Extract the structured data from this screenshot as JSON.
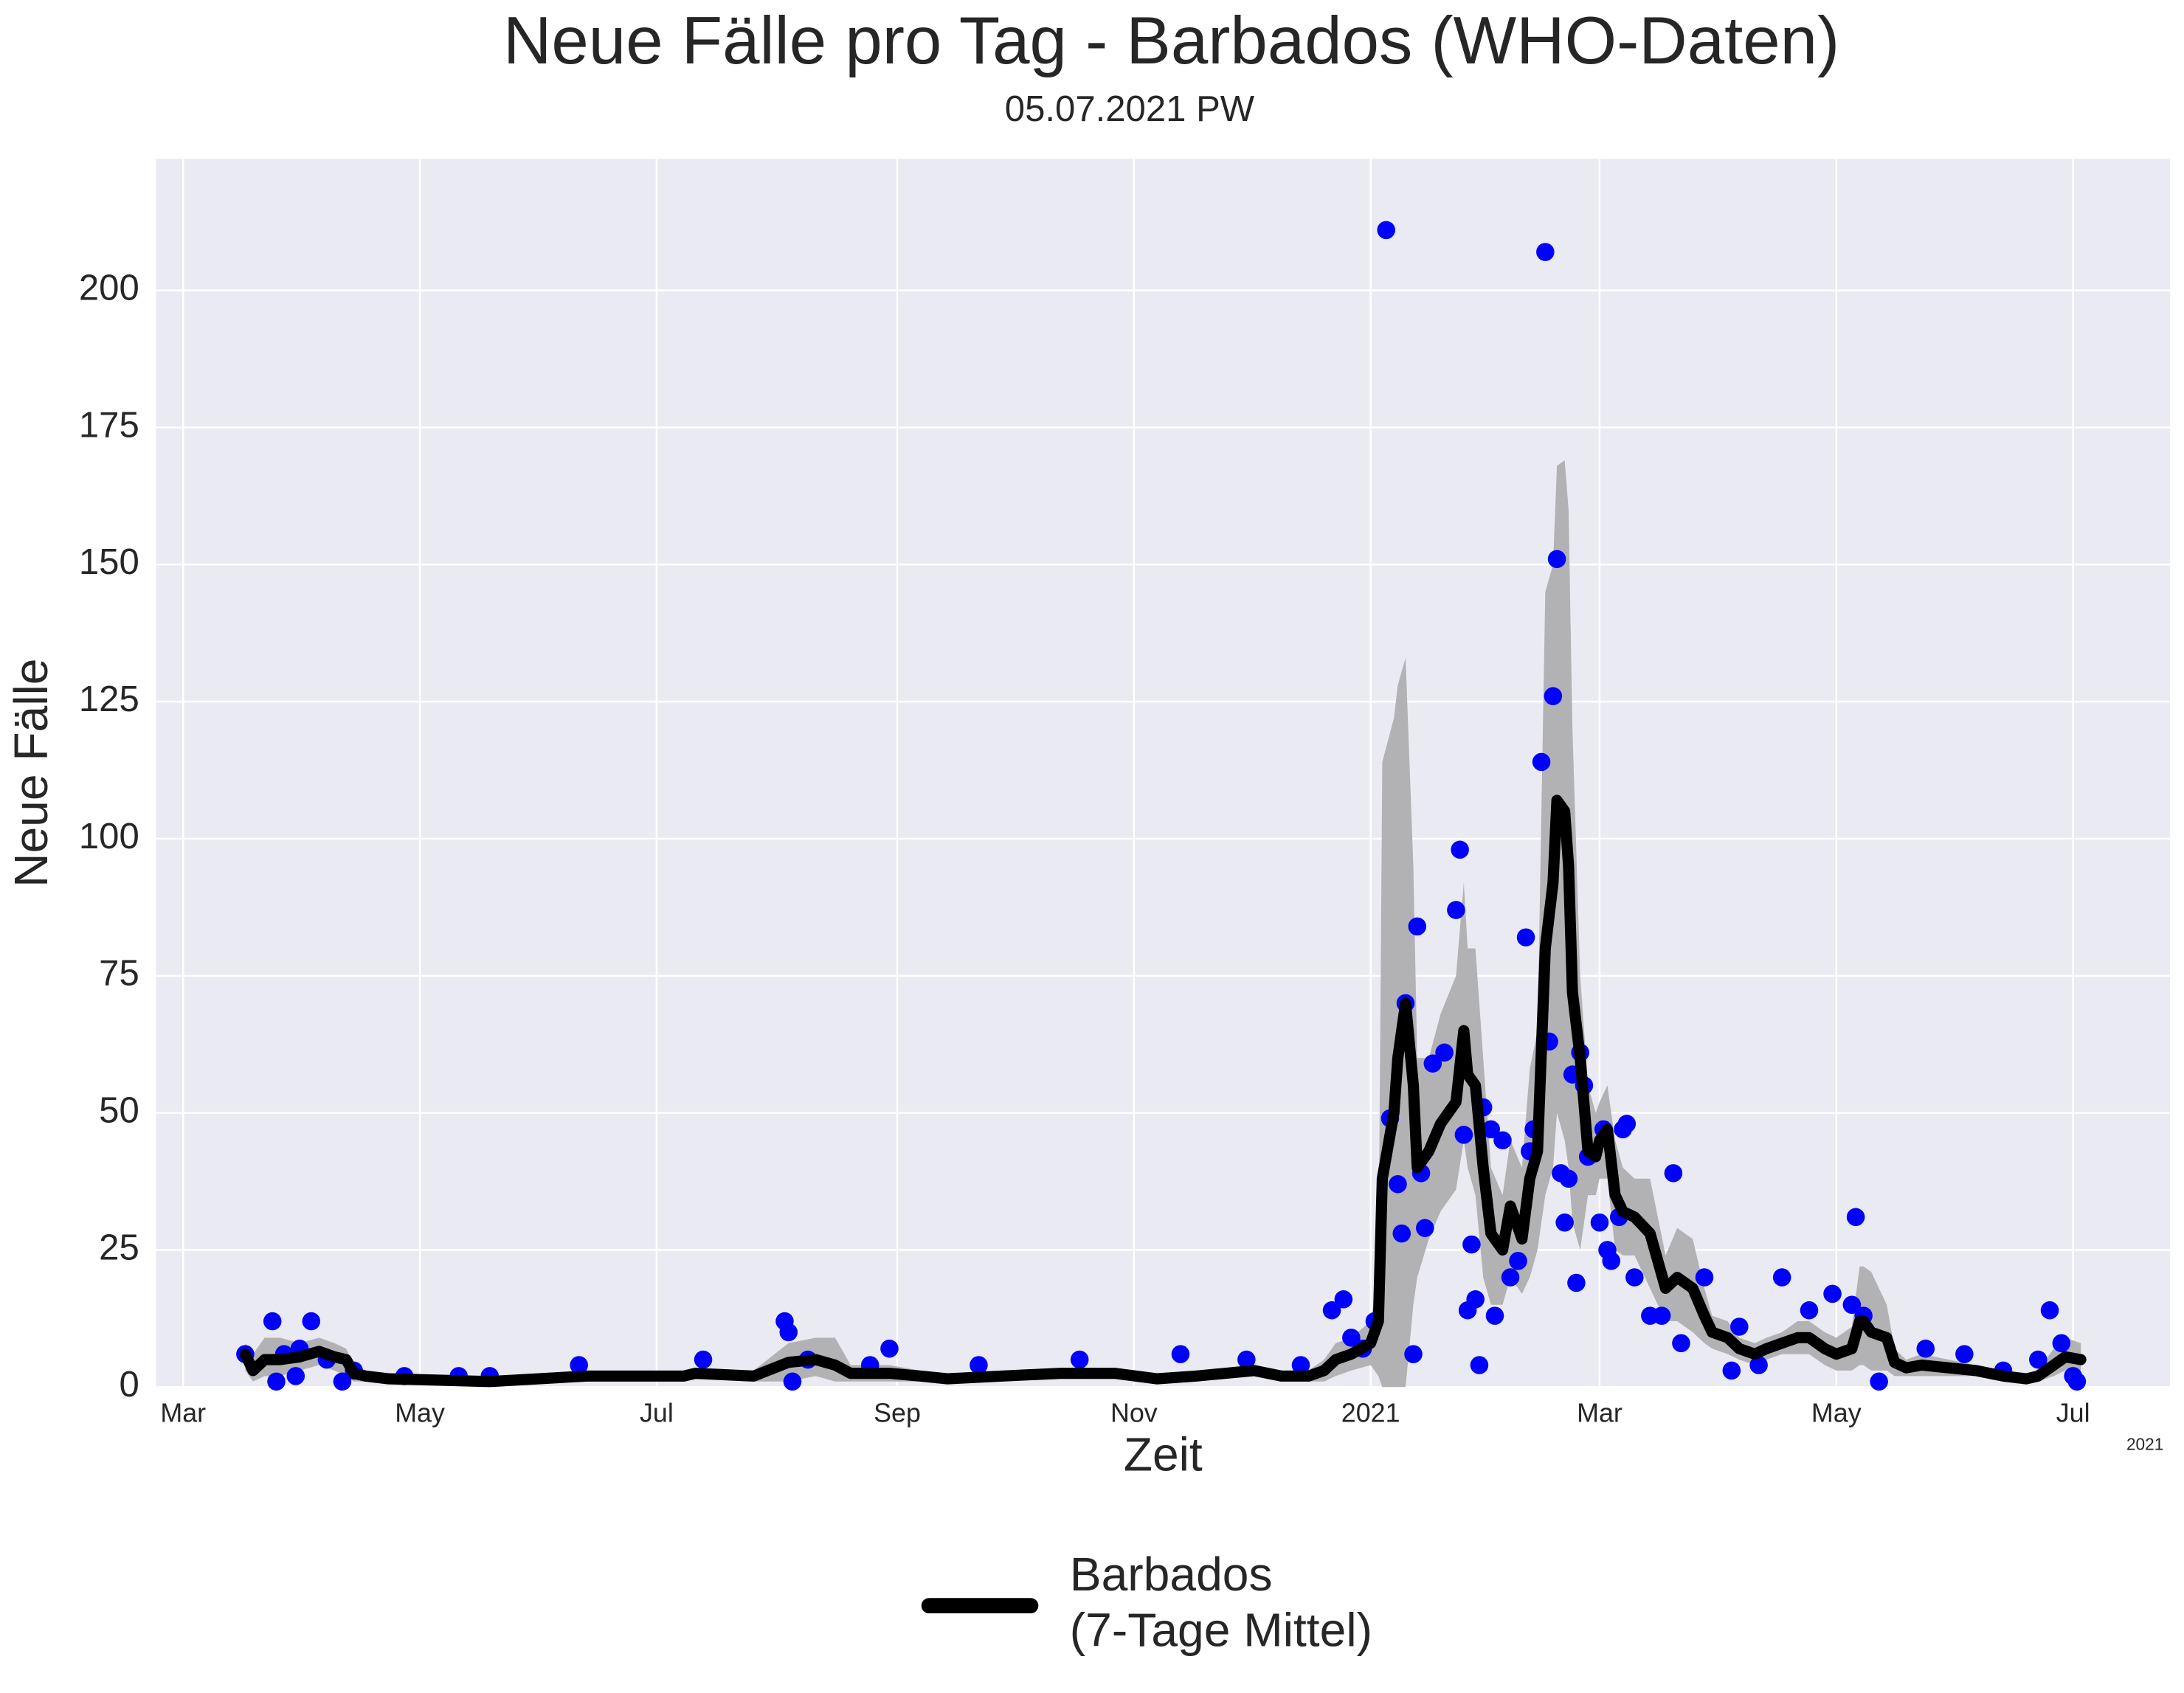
{
  "chart_data": {
    "type": "line",
    "title": "Neue Fälle pro Tag - Barbados (WHO-Daten)",
    "subtitle": "05.07.2021 PW",
    "x_label": "Zeit",
    "y_label": "Neue Fälle",
    "x_offset_label": "2021",
    "grid": true,
    "background": "#eaeaf2",
    "legend": "bottom",
    "xlim": [
      "2020-02-23",
      "2021-07-26"
    ],
    "xticks": [
      {
        "value": "2020-03-01",
        "label": "Mar"
      },
      {
        "value": "2020-05-01",
        "label": "May"
      },
      {
        "value": "2020-07-01",
        "label": "Jul"
      },
      {
        "value": "2020-09-01",
        "label": "Sep"
      },
      {
        "value": "2020-11-01",
        "label": "Nov"
      },
      {
        "value": "2021-01-01",
        "label": "2021"
      },
      {
        "value": "2021-03-01",
        "label": "Mar"
      },
      {
        "value": "2021-05-01",
        "label": "May"
      },
      {
        "value": "2021-07-01",
        "label": "Jul"
      }
    ],
    "ylim": [
      0,
      224
    ],
    "yticks": [
      0,
      25,
      50,
      75,
      100,
      125,
      150,
      175,
      200
    ],
    "series": [
      {
        "type": "scatter",
        "color": "#0000ff",
        "x": [
          "2020-03-17",
          "2020-03-24",
          "2020-03-25",
          "2020-03-27",
          "2020-03-30",
          "2020-03-31",
          "2020-04-03",
          "2020-04-07",
          "2020-04-11",
          "2020-04-14",
          "2020-04-27",
          "2020-05-11",
          "2020-05-19",
          "2020-06-11",
          "2020-07-13",
          "2020-08-03",
          "2020-08-04",
          "2020-08-05",
          "2020-08-09",
          "2020-08-25",
          "2020-08-30",
          "2020-09-22",
          "2020-10-18",
          "2020-11-13",
          "2020-11-30",
          "2020-12-14",
          "2020-12-22",
          "2020-12-25",
          "2020-12-27",
          "2020-12-30",
          "2021-01-02",
          "2021-01-05",
          "2021-01-06",
          "2021-01-08",
          "2021-01-09",
          "2021-01-10",
          "2021-01-12",
          "2021-01-13",
          "2021-01-14",
          "2021-01-15",
          "2021-01-17",
          "2021-01-20",
          "2021-01-23",
          "2021-01-24",
          "2021-01-25",
          "2021-01-26",
          "2021-01-27",
          "2021-01-28",
          "2021-01-29",
          "2021-01-30",
          "2021-02-01",
          "2021-02-02",
          "2021-02-04",
          "2021-02-06",
          "2021-02-08",
          "2021-02-10",
          "2021-02-11",
          "2021-02-12",
          "2021-02-14",
          "2021-02-15",
          "2021-02-16",
          "2021-02-17",
          "2021-02-18",
          "2021-02-19",
          "2021-02-20",
          "2021-02-21",
          "2021-02-22",
          "2021-02-23",
          "2021-02-24",
          "2021-02-25",
          "2021-02-26",
          "2021-03-01",
          "2021-03-02",
          "2021-03-03",
          "2021-03-04",
          "2021-03-06",
          "2021-03-07",
          "2021-03-08",
          "2021-03-10",
          "2021-03-14",
          "2021-03-17",
          "2021-03-20",
          "2021-03-22",
          "2021-03-28",
          "2021-04-04",
          "2021-04-06",
          "2021-04-11",
          "2021-04-17",
          "2021-04-24",
          "2021-04-30",
          "2021-05-05",
          "2021-05-06",
          "2021-05-08",
          "2021-05-12",
          "2021-05-24",
          "2021-06-03",
          "2021-06-13",
          "2021-06-22",
          "2021-06-25",
          "2021-06-28",
          "2021-07-01",
          "2021-07-02"
        ],
        "values": [
          6,
          12,
          1,
          6,
          2,
          7,
          12,
          5,
          1,
          3,
          2,
          2,
          2,
          4,
          5,
          12,
          10,
          1,
          5,
          4,
          7,
          4,
          5,
          6,
          5,
          4,
          14,
          16,
          9,
          7,
          12,
          211,
          49,
          37,
          28,
          70,
          6,
          84,
          39,
          29,
          59,
          61,
          87,
          98,
          46,
          14,
          26,
          16,
          4,
          51,
          47,
          13,
          45,
          20,
          23,
          82,
          43,
          47,
          114,
          207,
          63,
          126,
          151,
          39,
          30,
          38,
          57,
          19,
          61,
          55,
          42,
          30,
          47,
          25,
          23,
          31,
          47,
          48,
          20,
          13,
          13,
          39,
          8,
          20,
          3,
          11,
          4,
          20,
          14,
          17,
          15,
          31,
          13,
          1,
          7,
          6,
          3,
          5,
          14,
          8,
          2,
          1
        ]
      },
      {
        "type": "line",
        "name": "Barbados\n(7-Tage Mittel)",
        "color": "#000000",
        "band_color": "#b2b2b4",
        "x": [
          "2020-03-17",
          "2020-03-19",
          "2020-03-22",
          "2020-03-26",
          "2020-03-31",
          "2020-04-05",
          "2020-04-09",
          "2020-04-12",
          "2020-04-14",
          "2020-04-17",
          "2020-04-23",
          "2020-05-19",
          "2020-06-13",
          "2020-07-08",
          "2020-07-11",
          "2020-07-26",
          "2020-08-04",
          "2020-08-11",
          "2020-08-16",
          "2020-08-20",
          "2020-08-30",
          "2020-09-07",
          "2020-09-14",
          "2020-09-28",
          "2020-10-13",
          "2020-10-27",
          "2020-11-07",
          "2020-11-17",
          "2020-12-02",
          "2020-12-09",
          "2020-12-16",
          "2020-12-20",
          "2020-12-23",
          "2020-12-27",
          "2021-01-01",
          "2021-01-03",
          "2021-01-04",
          "2021-01-07",
          "2021-01-08",
          "2021-01-10",
          "2021-01-12",
          "2021-01-13",
          "2021-01-16",
          "2021-01-19",
          "2021-01-23",
          "2021-01-25",
          "2021-01-26",
          "2021-01-28",
          "2021-01-30",
          "2021-02-01",
          "2021-02-04",
          "2021-02-06",
          "2021-02-09",
          "2021-02-11",
          "2021-02-13",
          "2021-02-15",
          "2021-02-17",
          "2021-02-18",
          "2021-02-20",
          "2021-02-21",
          "2021-02-22",
          "2021-02-24",
          "2021-02-26",
          "2021-02-28",
          "2021-03-01",
          "2021-03-03",
          "2021-03-05",
          "2021-03-07",
          "2021-03-10",
          "2021-03-14",
          "2021-03-18",
          "2021-03-21",
          "2021-03-25",
          "2021-03-28",
          "2021-03-30",
          "2021-04-03",
          "2021-04-06",
          "2021-04-10",
          "2021-04-13",
          "2021-04-17",
          "2021-04-21",
          "2021-04-24",
          "2021-04-28",
          "2021-05-01",
          "2021-05-05",
          "2021-05-07",
          "2021-05-08",
          "2021-05-10",
          "2021-05-14",
          "2021-05-16",
          "2021-05-19",
          "2021-05-23",
          "2021-05-30",
          "2021-06-06",
          "2021-06-13",
          "2021-06-19",
          "2021-06-22",
          "2021-06-26",
          "2021-06-29",
          "2021-07-03"
        ],
        "values": [
          6,
          3,
          5,
          5,
          5.5,
          6.5,
          5.5,
          5,
          2.5,
          2,
          1.5,
          1,
          2,
          2,
          2.5,
          2,
          4.5,
          5,
          4,
          2.5,
          2.5,
          2,
          1.5,
          2,
          2.5,
          2.5,
          1.5,
          2,
          3,
          2,
          2,
          3,
          5,
          6,
          8,
          12,
          38,
          50,
          60,
          70,
          55,
          40,
          43,
          48,
          52,
          65,
          57,
          55,
          40,
          28,
          25,
          33,
          27,
          38,
          43,
          80,
          92,
          107,
          105,
          95,
          72,
          60,
          43,
          42,
          45,
          47,
          35,
          32,
          31,
          28,
          18,
          20,
          18,
          13,
          10,
          9,
          7,
          6,
          7,
          8,
          9,
          9,
          7,
          6,
          7,
          12,
          12,
          10,
          9,
          4.5,
          3.5,
          4,
          3.5,
          3,
          2,
          1.5,
          2,
          4,
          5.5,
          5
        ],
        "band_lower": [
          3,
          1,
          2,
          2,
          3,
          4,
          3,
          2,
          1,
          1,
          1,
          0.5,
          1,
          1,
          1.5,
          1,
          1,
          2,
          1,
          1,
          1,
          1,
          1,
          1,
          1.5,
          1.5,
          1,
          1,
          2,
          1,
          1,
          1,
          2,
          3,
          4,
          2,
          0,
          0,
          0,
          0,
          15,
          20,
          27,
          32,
          36,
          45,
          40,
          35,
          20,
          15,
          15,
          20,
          17,
          20,
          25,
          35,
          40,
          50,
          45,
          40,
          30,
          25,
          35,
          35,
          38,
          38,
          25,
          24,
          24,
          18,
          12,
          12,
          10,
          8,
          7,
          6,
          5,
          4,
          5,
          6,
          6,
          6,
          4,
          3,
          3,
          4,
          4,
          3,
          3,
          2,
          2,
          2,
          2,
          2,
          1,
          1,
          1,
          2,
          3,
          3
        ],
        "band_upper": [
          8,
          6,
          9,
          9,
          8,
          9,
          8,
          7,
          4,
          3,
          2,
          2,
          3,
          3,
          3.5,
          3,
          8,
          9,
          9,
          4,
          4,
          3,
          2.5,
          3,
          3.5,
          3.5,
          2.5,
          3,
          4,
          3,
          3,
          5,
          8,
          9,
          12,
          20,
          114,
          122,
          128,
          133,
          95,
          60,
          60,
          68,
          75,
          92,
          80,
          80,
          60,
          40,
          35,
          45,
          40,
          58,
          65,
          145,
          150,
          168,
          169,
          160,
          120,
          75,
          55,
          50,
          52,
          55,
          45,
          40,
          38,
          38,
          24,
          29,
          27,
          18,
          13,
          12,
          9,
          8,
          9,
          10,
          12,
          12,
          10,
          9,
          11,
          22,
          22,
          21,
          15,
          7,
          5,
          6,
          5,
          4,
          3,
          2,
          3,
          7,
          9,
          8
        ]
      }
    ]
  }
}
